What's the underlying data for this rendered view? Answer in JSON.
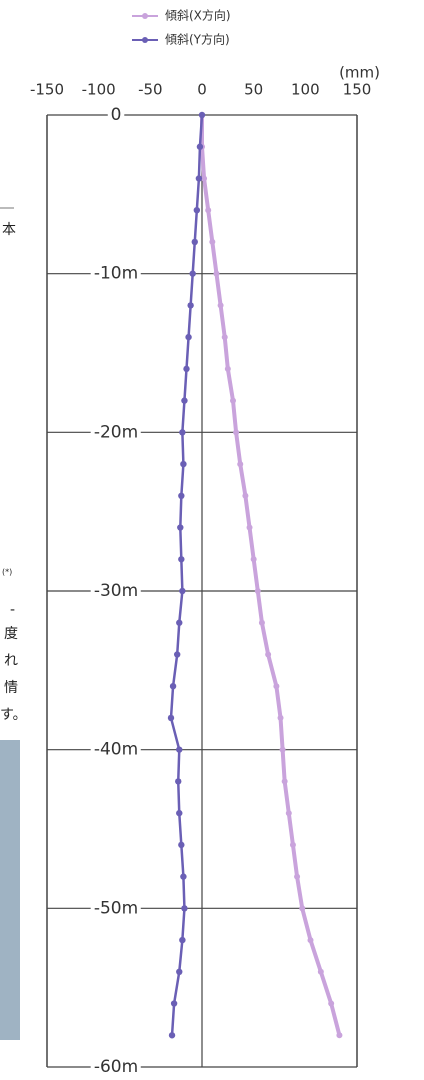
{
  "chart_data": {
    "type": "line",
    "x_label": "(mm)",
    "y": [
      0,
      -2,
      -4,
      -6,
      -8,
      -10,
      -12,
      -14,
      -16,
      -18,
      -20,
      -22,
      -24,
      -26,
      -28,
      -30,
      -32,
      -34,
      -36,
      -38,
      -40,
      -42,
      -44,
      -46,
      -48,
      -50,
      -52,
      -54,
      -56,
      -58
    ],
    "series": [
      {
        "name": "傾斜(X方向)",
        "color": "#c9a3dc",
        "values": [
          0,
          0,
          2,
          6,
          10,
          14,
          18,
          22,
          25,
          30,
          33,
          37,
          42,
          46,
          50,
          54,
          58,
          64,
          72,
          76,
          78,
          80,
          84,
          88,
          92,
          97,
          105,
          115,
          125,
          133
        ]
      },
      {
        "name": "傾斜(Y方向)",
        "color": "#6a5fb5",
        "values": [
          0,
          -2,
          -3,
          -5,
          -7,
          -9,
          -11,
          -13,
          -15,
          -17,
          -19,
          -18,
          -20,
          -21,
          -20,
          -19,
          -22,
          -24,
          -28,
          -30,
          -22,
          -23,
          -22,
          -20,
          -18,
          -17,
          -19,
          -22,
          -27,
          -29
        ]
      }
    ],
    "xlim": [
      -150,
      150
    ],
    "xticks": [
      -150,
      -100,
      -50,
      0,
      50,
      100,
      150
    ],
    "ylim": [
      -60,
      0
    ],
    "yticks": [
      0,
      {
        "value": -10,
        "label": "-10m"
      },
      {
        "value": -20,
        "label": "-20m"
      },
      {
        "value": -30,
        "label": "-30m"
      },
      {
        "value": -40,
        "label": "-40m"
      },
      {
        "value": -50,
        "label": "-50m"
      },
      {
        "value": -60,
        "label": "-60m"
      }
    ],
    "grid": true
  },
  "margin_text": [
    "本",
    "(*)",
    "-",
    "度",
    "れ",
    "情",
    "す。"
  ]
}
